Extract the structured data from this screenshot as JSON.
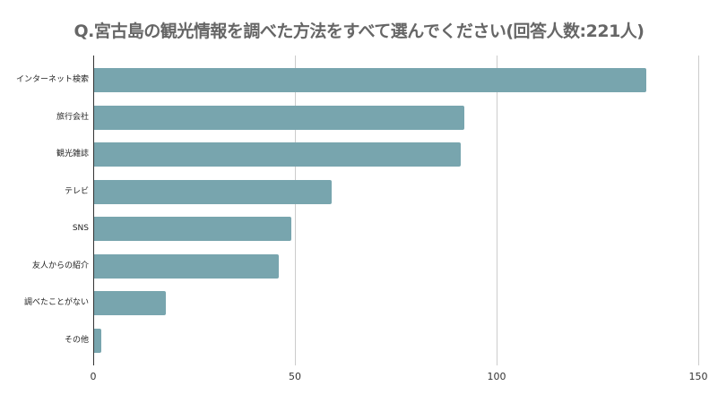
{
  "chart_data": {
    "type": "bar",
    "orientation": "horizontal",
    "title": "Q.宮古島の観光情報を調べた方法をすべて選んでください(回答人数:221人)",
    "categories": [
      "インターネット検索",
      "旅行会社",
      "観光雑誌",
      "テレビ",
      "SNS",
      "友人からの紹介",
      "調べたことがない",
      "その他"
    ],
    "values": [
      137,
      92,
      91,
      59,
      49,
      46,
      18,
      2
    ],
    "xlabel": "",
    "ylabel": "",
    "xlim": [
      0,
      150
    ],
    "xticks": [
      "0",
      "50",
      "100",
      "150"
    ],
    "grid": true,
    "legend": null,
    "bar_color": "#78a5ae"
  }
}
